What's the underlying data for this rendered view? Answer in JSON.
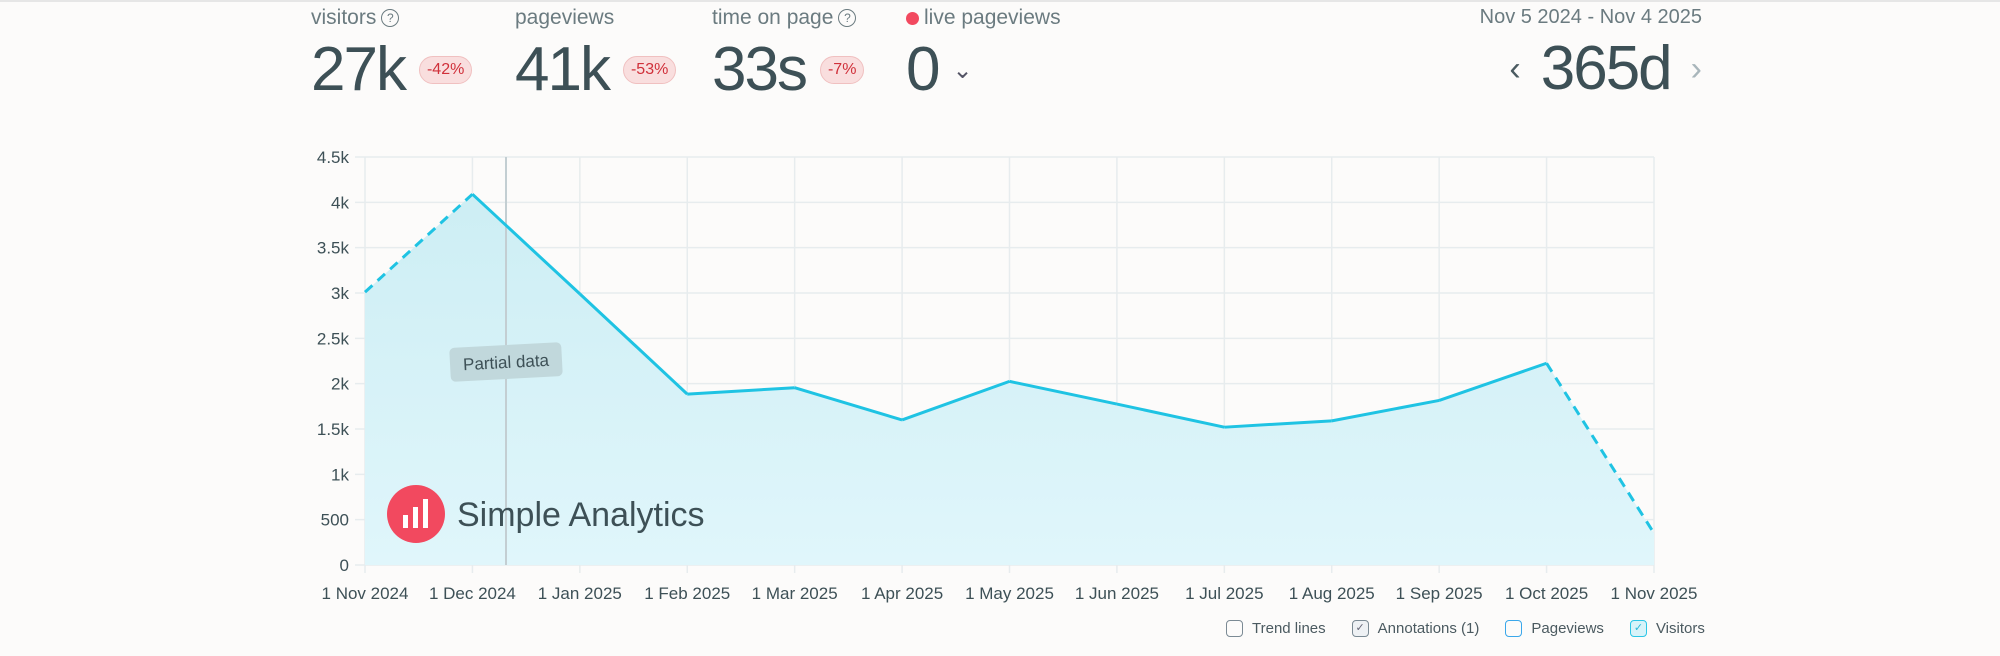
{
  "metrics": [
    {
      "label": "visitors",
      "value": "27k",
      "change": "-42%",
      "help": "?"
    },
    {
      "label": "pageviews",
      "value": "41k",
      "change": "-53%"
    },
    {
      "label": "time on page",
      "value": "33s",
      "change": "-7%",
      "help": "?"
    },
    {
      "label": "live pageviews",
      "value": "0"
    }
  ],
  "range": {
    "dates": "Nov 5 2024 - Nov 4 2025",
    "period": "365d",
    "prev": "‹",
    "next": "›"
  },
  "brand": {
    "name": "Simple Analytics"
  },
  "annotation": {
    "label": "Partial data"
  },
  "legend": [
    {
      "label": "Trend lines",
      "checked": false
    },
    {
      "label": "Annotations (1)",
      "checked": true
    },
    {
      "label": "Pageviews",
      "checked": false
    },
    {
      "label": "Visitors",
      "checked": true
    }
  ],
  "colors": {
    "line": "#1fc3e3",
    "fill": "#d6f1f7",
    "badge": "#d0303a",
    "live": "#f2495f",
    "logo": "#f2495f"
  },
  "chart_data": {
    "type": "area",
    "x": [
      "1 Nov 2024",
      "1 Dec 2024",
      "1 Jan 2025",
      "1 Feb 2025",
      "1 Mar 2025",
      "1 Apr 2025",
      "1 May 2025",
      "1 Jun 2025",
      "1 Jul 2025",
      "1 Aug 2025",
      "1 Sep 2025",
      "1 Oct 2025",
      "1 Nov 2025"
    ],
    "series": [
      {
        "name": "Visitors",
        "values": [
          3010,
          4090,
          2990,
          1885,
          1955,
          1600,
          2025,
          1775,
          1520,
          1590,
          1815,
          2225,
          350
        ]
      }
    ],
    "yticks": [
      "0",
      "500",
      "1k",
      "1.5k",
      "2k",
      "2.5k",
      "3k",
      "3.5k",
      "4k",
      "4.5k"
    ],
    "ylim": [
      0,
      4500
    ],
    "grid": true,
    "partial_segments": [
      "first",
      "last"
    ]
  }
}
